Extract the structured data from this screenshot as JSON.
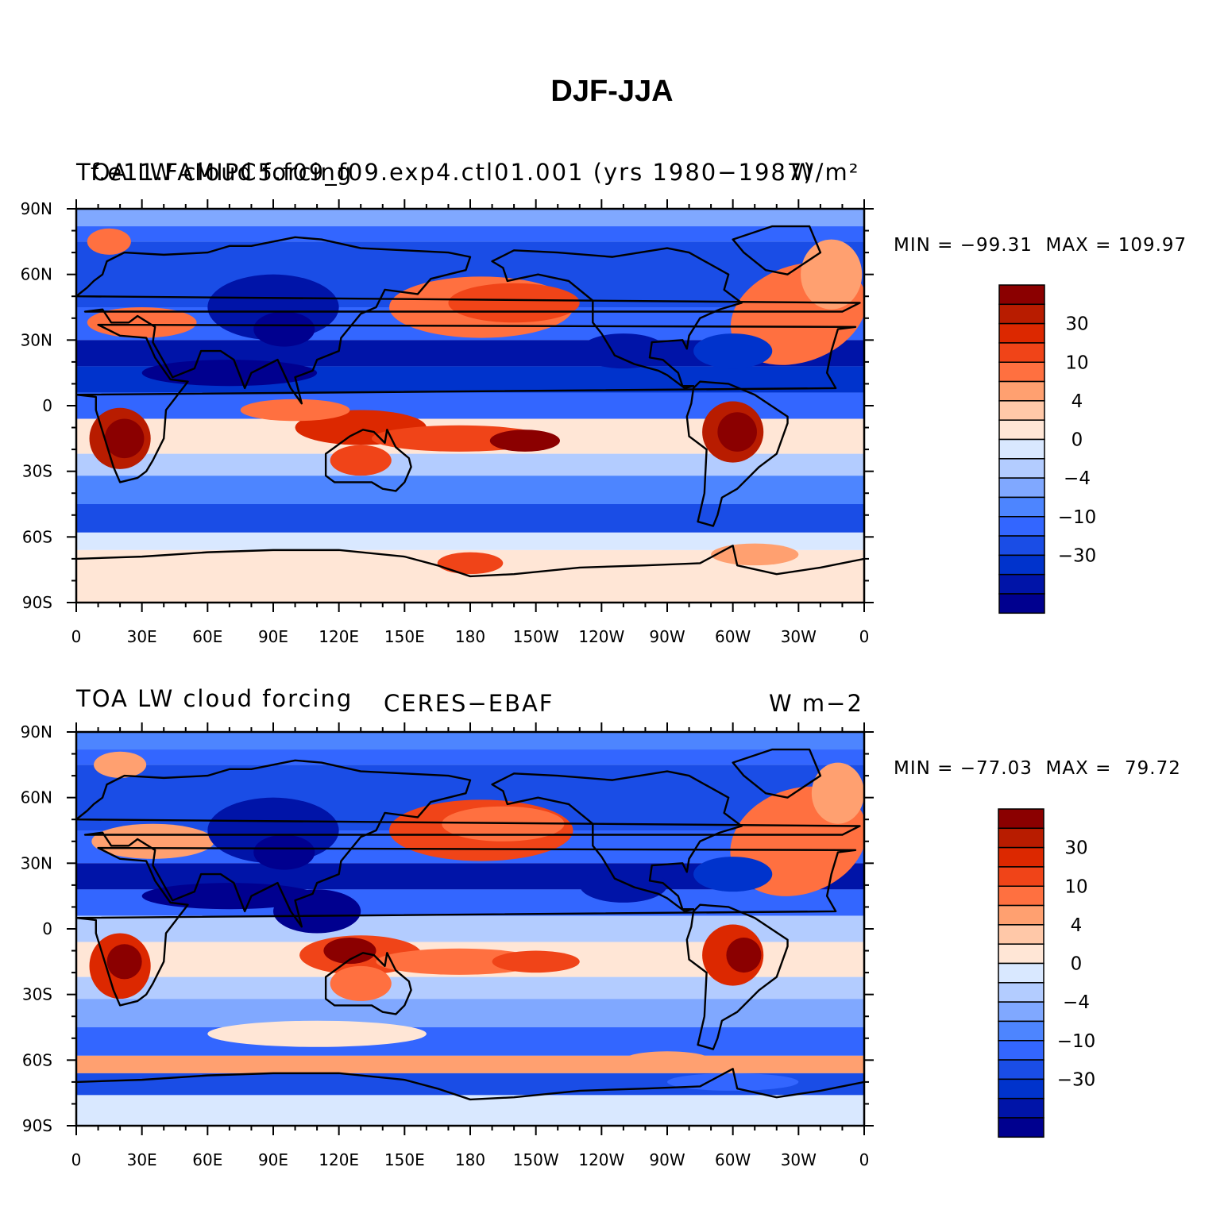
{
  "page_title": "DJF-JJA",
  "colors": [
    "#00008f",
    "#0014a8",
    "#0033cc",
    "#1a4de6",
    "#3366ff",
    "#4d85ff",
    "#80a8ff",
    "#b3ccff",
    "#d9e8ff",
    "#ffe6d6",
    "#ffc8a8",
    "#ffa070",
    "#ff7040",
    "#f04418",
    "#dc2800",
    "#b81c00",
    "#8b0000"
  ],
  "colorbar_labels": [
    "30",
    "10",
    "4",
    "0",
    "−4",
    "−10",
    "−30"
  ],
  "lat_labels": [
    "90N",
    "60N",
    "30N",
    "0",
    "30S",
    "60S",
    "90S"
  ],
  "lon_labels": [
    "0",
    "30E",
    "60E",
    "90E",
    "120E",
    "150E",
    "180",
    "150W",
    "120W",
    "90W",
    "60W",
    "30W",
    "0"
  ],
  "chart_data": [
    {
      "type": "heatmap",
      "variable": "TOA LW cloud forcing",
      "left_title": "TOA LW cloud forcing",
      "center_title": "f.e11.FAMIPC5.f09_f09.exp4.ctl01.001 (yrs 1980−1987)",
      "units": "W/m²",
      "min_label": "MIN = −99.31",
      "max_label": "MAX = 109.97",
      "min": -99.31,
      "max": 109.97,
      "contour_levels": [
        -50,
        -40,
        -30,
        -20,
        -15,
        -10,
        -8,
        -4,
        -2,
        0,
        2,
        4,
        8,
        10,
        15,
        20,
        30,
        40
      ],
      "x_range": [
        "0",
        "360"
      ],
      "y_range": [
        "90S",
        "90N"
      ]
    },
    {
      "type": "heatmap",
      "variable": "TOA LW cloud forcing",
      "left_title": "TOA LW cloud forcing",
      "center_title": "CERES−EBAF",
      "units": "W m−2",
      "min_label": "MIN = −77.03",
      "max_label": "MAX =  79.72",
      "min": -77.03,
      "max": 79.72,
      "contour_levels": [
        -50,
        -40,
        -30,
        -20,
        -15,
        -10,
        -8,
        -4,
        -2,
        0,
        2,
        4,
        8,
        10,
        15,
        20,
        30,
        40
      ],
      "x_range": [
        "0",
        "360"
      ],
      "y_range": [
        "90S",
        "90N"
      ]
    }
  ]
}
